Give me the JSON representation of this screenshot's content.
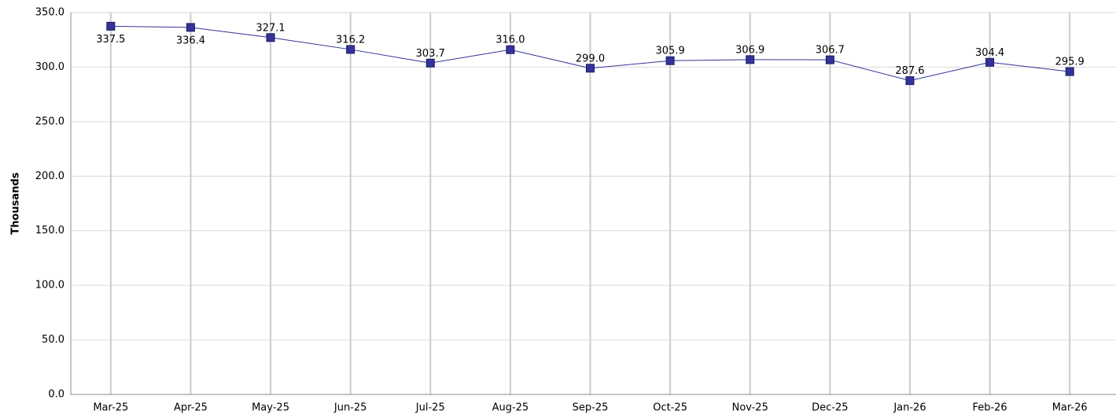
{
  "chart_data": {
    "type": "line",
    "y_label": "Thousands",
    "categories": [
      "Mar-25",
      "Apr-25",
      "May-25",
      "Jun-25",
      "Jul-25",
      "Aug-25",
      "Sep-25",
      "Oct-25",
      "Nov-25",
      "Dec-25",
      "Jan-26",
      "Feb-26",
      "Mar-26"
    ],
    "series": [
      {
        "name": "Thousands",
        "color": "#333399",
        "values": [
          337.5,
          336.4,
          327.1,
          316.2,
          303.7,
          316.0,
          299.0,
          305.9,
          306.9,
          306.7,
          287.6,
          304.4,
          295.9
        ],
        "value_labels": [
          "337.5",
          "336.4",
          "327.1",
          "316.2",
          "303.7",
          "316.0",
          "299.0",
          "305.9",
          "306.9",
          "306.7",
          "287.6",
          "304.4",
          "295.9"
        ]
      }
    ],
    "ylim": [
      0,
      350
    ],
    "yticks": [
      {
        "value": 0,
        "label": "0.0"
      },
      {
        "value": 50,
        "label": "50.0"
      },
      {
        "value": 100,
        "label": "100.0"
      },
      {
        "value": 150,
        "label": "150.0"
      },
      {
        "value": 200,
        "label": "200.0"
      },
      {
        "value": 250,
        "label": "250.0"
      },
      {
        "value": 300,
        "label": "300.0"
      },
      {
        "value": 350,
        "label": "350.0"
      }
    ],
    "grid": true
  }
}
